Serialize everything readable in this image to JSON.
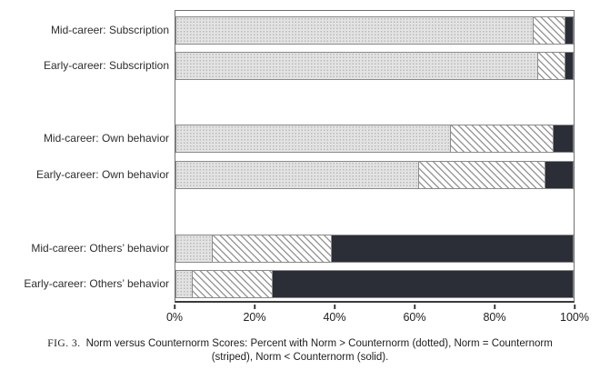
{
  "figure": {
    "caption": {
      "fig_label": "FIG. 3.",
      "line1": "Norm versus Counternorm Scores: Percent with Norm > Counternorm (dotted), Norm = Counternorm",
      "line2": "(striped), Norm < Counternorm (solid)."
    }
  },
  "chart_data": {
    "type": "bar",
    "orientation": "horizontal",
    "stacked": true,
    "title": "",
    "xlabel": "",
    "ylabel": "",
    "categories": [
      "Mid-career: Subscription",
      "Early-career: Subscription",
      "Mid-career: Own behavior",
      "Early-career: Own behavior",
      "Mid-career: Others’ behavior",
      "Early-career: Others’ behavior"
    ],
    "series": [
      {
        "name": "Norm > Counternorm",
        "pattern": "dotted",
        "values": [
          90,
          91,
          69,
          61,
          9,
          4
        ]
      },
      {
        "name": "Norm = Counternorm",
        "pattern": "striped",
        "values": [
          8,
          7,
          26,
          32,
          30,
          20
        ]
      },
      {
        "name": "Norm < Counternorm",
        "pattern": "solid",
        "values": [
          2,
          2,
          5,
          7,
          61,
          76
        ]
      }
    ],
    "x_ticks": [
      "0%",
      "20%",
      "40%",
      "60%",
      "80%",
      "100%"
    ],
    "xlim": [
      0,
      100
    ],
    "grid": false,
    "legend_position": "in-caption",
    "colors": {
      "dotted_fill": "#e3e3e3",
      "dotted_dot": "#b8b8b8",
      "striped_bg": "#ffffff",
      "striped_line": "#9a9a9a",
      "solid_fill": "#2b2e37",
      "bar_border": "#8a8a8a",
      "axis": "#3a3a3a",
      "text": "#2a2a2a"
    }
  }
}
